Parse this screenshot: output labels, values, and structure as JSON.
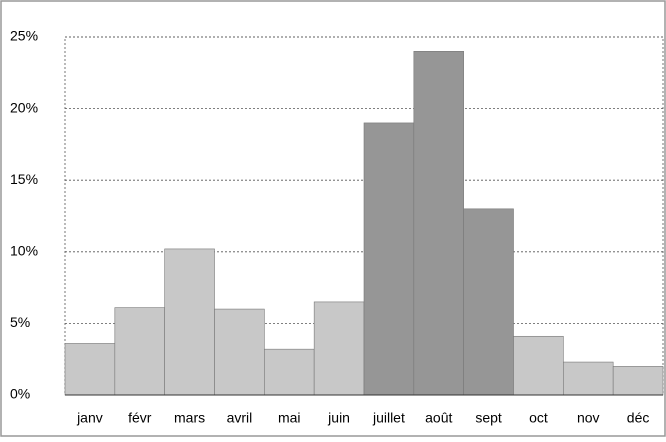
{
  "chart_data": {
    "type": "bar",
    "categories": [
      "janv",
      "févr",
      "mars",
      "avril",
      "mai",
      "juin",
      "juillet",
      "août",
      "sept",
      "oct",
      "nov",
      "déc"
    ],
    "values": [
      3.6,
      6.1,
      10.2,
      6.0,
      3.2,
      6.5,
      19.0,
      24.0,
      13.0,
      4.1,
      2.3,
      2.0
    ],
    "colors": [
      "#c8c8c8",
      "#c8c8c8",
      "#c8c8c8",
      "#c8c8c8",
      "#c8c8c8",
      "#c8c8c8",
      "#969696",
      "#969696",
      "#969696",
      "#c8c8c8",
      "#c8c8c8",
      "#c8c8c8"
    ],
    "ylim": [
      0,
      25
    ],
    "yticks": [
      {
        "value": 0,
        "label": "0%"
      },
      {
        "value": 5,
        "label": "5%"
      },
      {
        "value": 10,
        "label": "10%"
      },
      {
        "value": 15,
        "label": "15%"
      },
      {
        "value": 20,
        "label": "20%"
      },
      {
        "value": 25,
        "label": "25%"
      }
    ],
    "grid": true
  }
}
